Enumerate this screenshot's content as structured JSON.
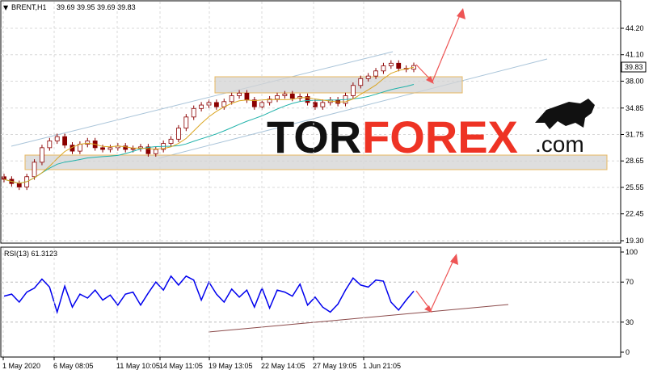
{
  "header": {
    "symbol": "BRENT,H1",
    "ohlc": "39.69 39.95 39.69 39.83",
    "menu_glyph": "▼"
  },
  "price_panel": {
    "last_price": "39.83",
    "y_ticks": [
      "44.20",
      "41.10",
      "38.00",
      "34.85",
      "31.75",
      "28.65",
      "25.55",
      "22.45",
      "19.30"
    ]
  },
  "rsi_panel": {
    "label": "RSI(13) 61.3123",
    "y_ticks": [
      "100",
      "70",
      "30",
      "0"
    ]
  },
  "x_axis": {
    "labels": [
      "1 May 2020",
      "6 May 08:05",
      "11 May 10:05",
      "14 May 11:05",
      "19 May 13:05",
      "22 May 14:05",
      "27 May 19:05",
      "1 Jun 21:05"
    ]
  },
  "brand": {
    "part1": "TOR",
    "part2": "FOREX",
    "part3": ".com"
  },
  "colors": {
    "candle": "#8b0000",
    "ma_fast": "#daa520",
    "ma_slow": "#20b2aa",
    "channel": "#a9c4d9",
    "zone_border": "#e8b860",
    "zone_fill": "#d3d3d3",
    "arrow": "#ee5555",
    "rsi_line": "#0000ee",
    "rsi_trend": "#8b4a4a",
    "grid": "#d8d8d8"
  },
  "chart_data": [
    {
      "type": "line",
      "title": "BRENT,H1",
      "ylim": [
        19.3,
        46.5
      ],
      "y_ticks": [
        44.2,
        41.1,
        38.0,
        34.85,
        31.75,
        28.65,
        25.55,
        22.45,
        19.3
      ],
      "x_labels": [
        "1 May 2020",
        "6 May 08:05",
        "11 May 10:05",
        "14 May 11:05",
        "19 May 13:05",
        "22 May 14:05",
        "27 May 19:05",
        "1 Jun 21:05"
      ],
      "series": [
        {
          "values": [
            26.5,
            26.0,
            25.6,
            26.8,
            28.5,
            30.2,
            31.0,
            31.5,
            30.5,
            29.8,
            30.6,
            31.0,
            30.2,
            30.0,
            30.2,
            30.4,
            30.0,
            30.1,
            30.3,
            29.5,
            30.0,
            30.7,
            31.2,
            32.5,
            33.8,
            34.8,
            35.2,
            35.5,
            35.0,
            35.6,
            36.3,
            36.6,
            35.8,
            35.0,
            35.5,
            35.9,
            36.3,
            36.5,
            36.0,
            36.2,
            35.5,
            35.0,
            35.5,
            35.8,
            35.4,
            36.3,
            37.5,
            38.3,
            38.6,
            39.2,
            39.8,
            40.1,
            39.5,
            39.4,
            39.83
          ]
        }
      ]
    },
    {
      "type": "line",
      "title": "RSI(13) 61.3123",
      "ylim": [
        0,
        100
      ],
      "y_ticks": [
        100,
        70,
        30,
        0
      ],
      "series": [
        {
          "values": [
            56,
            58,
            50,
            60,
            64,
            73,
            65,
            40,
            66,
            45,
            58,
            54,
            62,
            52,
            57,
            47,
            58,
            60,
            47,
            59,
            70,
            62,
            76,
            67,
            76,
            72,
            52,
            70,
            58,
            50,
            63,
            55,
            62,
            45,
            64,
            44,
            62,
            60,
            56,
            68,
            47,
            55,
            45,
            40,
            48,
            62,
            74,
            67,
            65,
            72,
            71,
            50,
            42,
            52,
            61
          ]
        }
      ]
    }
  ]
}
